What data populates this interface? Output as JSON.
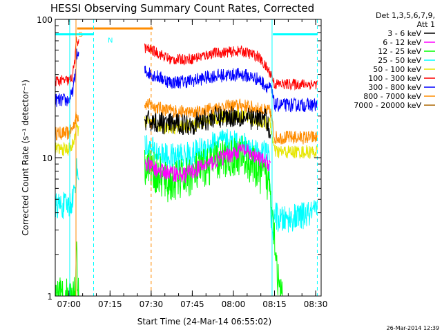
{
  "chart_data": {
    "type": "line",
    "title": "HESSI Observing Summary Count Rates, Corrected",
    "xlabel": "Start Time (24-Mar-14 06:55:02)",
    "ylabel": "Corrected Count Rate (s⁻¹ detector⁻¹)",
    "stamp": "26-Mar-2014 12:39",
    "y_scale": "log",
    "ylim": [
      1,
      100
    ],
    "y_ticks": [
      {
        "v": 1,
        "label": "1"
      },
      {
        "v": 10,
        "label": "10"
      },
      {
        "v": 100,
        "label": "100"
      }
    ],
    "xlim": [
      6.917,
      8.5333
    ],
    "x_ticks": [
      {
        "v": 7.0,
        "label": "07:00"
      },
      {
        "v": 7.25,
        "label": "07:15"
      },
      {
        "v": 7.5,
        "label": "07:30"
      },
      {
        "v": 7.75,
        "label": "07:45"
      },
      {
        "v": 8.0,
        "label": "08:00"
      },
      {
        "v": 8.25,
        "label": "08:15"
      },
      {
        "v": 8.5,
        "label": "08:30"
      }
    ],
    "legend": {
      "header": [
        "Det 1,3,5,6,7,9,",
        "Att 1"
      ],
      "placement": "right"
    },
    "series": [
      {
        "name": "3 - 6 keV",
        "color": "#000000",
        "noise": 0.08,
        "x": [
          7.4,
          7.46,
          7.6,
          7.75,
          7.88,
          8.02,
          8.11,
          8.2,
          8.225
        ],
        "y": [
          18.5,
          18.5,
          17.5,
          17.5,
          19.5,
          20.0,
          19.0,
          19.0,
          15.0
        ]
      },
      {
        "name": "6 - 12 keV",
        "color": "#ff00ff",
        "noise": 0.06,
        "x": [
          7.465,
          7.55,
          7.7,
          7.8,
          8.05,
          8.11,
          8.18,
          8.225
        ],
        "y": [
          9.0,
          8.0,
          7.5,
          8.5,
          11.5,
          10.5,
          9.5,
          9.0
        ]
      },
      {
        "name": "12 - 25 keV",
        "color": "#00ff00",
        "noise": 0.15,
        "x": [
          6.917,
          7.04,
          7.045,
          7.055,
          7.465,
          7.6,
          7.75,
          7.9,
          8.05,
          8.15,
          8.225,
          8.28,
          8.3
        ],
        "y": [
          1.0,
          1.0,
          3.0,
          1.0,
          9.0,
          6.5,
          7.5,
          9.5,
          10.5,
          8.0,
          6.5,
          1.0,
          1.0
        ]
      },
      {
        "name": "25 - 50 keV",
        "color": "#00ffff",
        "noise": 0.1,
        "x": [
          6.917,
          7.0,
          7.02,
          7.04,
          7.045,
          7.465,
          7.6,
          7.75,
          7.9,
          8.05,
          8.15,
          8.215,
          8.225,
          8.235,
          8.25,
          8.28,
          8.51
        ],
        "y": [
          4.5,
          4.5,
          5.0,
          6.0,
          8.0,
          12.0,
          10.0,
          10.5,
          13.0,
          12.5,
          11.0,
          10.5,
          5.0,
          2.5,
          4.0,
          3.5,
          4.0
        ]
      },
      {
        "name": "50 - 100 keV",
        "color": "#e6e600",
        "noise": 0.05,
        "x": [
          6.917,
          7.0,
          7.02,
          7.045,
          7.465,
          7.6,
          7.75,
          7.9,
          8.05,
          8.15,
          8.225,
          8.25,
          8.51
        ],
        "y": [
          11.5,
          11.5,
          12.0,
          16.0,
          18.0,
          16.5,
          17.0,
          19.5,
          20.0,
          18.5,
          17.5,
          11.0,
          11.0
        ]
      },
      {
        "name": "100 - 300 keV",
        "color": "#ff0000",
        "noise": 0.04,
        "x": [
          6.917,
          7.0,
          7.02,
          7.04,
          7.045,
          7.465,
          7.53,
          7.62,
          7.75,
          7.88,
          8.05,
          8.15,
          8.23,
          8.25,
          8.51
        ],
        "y": [
          36.0,
          36.0,
          38.0,
          55.0,
          70.0,
          62.0,
          58.0,
          51.0,
          52.0,
          57.0,
          59.0,
          54.0,
          40.0,
          34.0,
          34.0
        ]
      },
      {
        "name": "300 - 800 keV",
        "color": "#0000ff",
        "noise": 0.05,
        "x": [
          6.917,
          7.0,
          7.02,
          7.04,
          7.045,
          7.465,
          7.53,
          7.62,
          7.75,
          7.88,
          8.05,
          8.15,
          8.23,
          8.25,
          8.51
        ],
        "y": [
          26.0,
          26.0,
          29.0,
          40.0,
          55.0,
          42.0,
          39.0,
          35.0,
          36.0,
          39.0,
          40.0,
          37.0,
          31.0,
          24.0,
          24.0
        ]
      },
      {
        "name": "800 - 7000 keV",
        "color": "#ff8c00",
        "noise": 0.05,
        "x": [
          6.917,
          7.0,
          7.02,
          7.045,
          7.465,
          7.6,
          7.75,
          7.9,
          8.05,
          8.15,
          8.225,
          8.25,
          8.51
        ],
        "y": [
          15.0,
          15.0,
          16.0,
          20.0,
          24.5,
          22.0,
          21.0,
          23.0,
          24.0,
          22.5,
          21.5,
          14.0,
          14.0
        ]
      },
      {
        "name": "7000 - 20000 keV",
        "color": "#aa6600",
        "noise": 0.0,
        "x": [],
        "y": []
      }
    ],
    "segments": [
      {
        "label": "S",
        "color": "#ff8c00",
        "x0": 7.05,
        "x1": 7.51,
        "y": 86
      },
      {
        "label": "N",
        "color": "#00ffff",
        "x0": 6.917,
        "x1": 7.15,
        "y": 78
      },
      {
        "label": "",
        "color": "#00ffff",
        "x0": 8.24,
        "x1": 8.51,
        "y": 78
      }
    ],
    "vlines": [
      {
        "x": 7.043,
        "color": "#ff8c00",
        "dash": false
      },
      {
        "x": 7.5,
        "color": "#ff8c00",
        "dash": true
      },
      {
        "x": 7.005,
        "color": "#00ffff",
        "dash": false
      },
      {
        "x": 7.15,
        "color": "#00ffff",
        "dash": true
      },
      {
        "x": 8.235,
        "color": "#00ffff",
        "dash": false
      },
      {
        "x": 8.51,
        "color": "#00ffff",
        "dash": true
      }
    ]
  }
}
